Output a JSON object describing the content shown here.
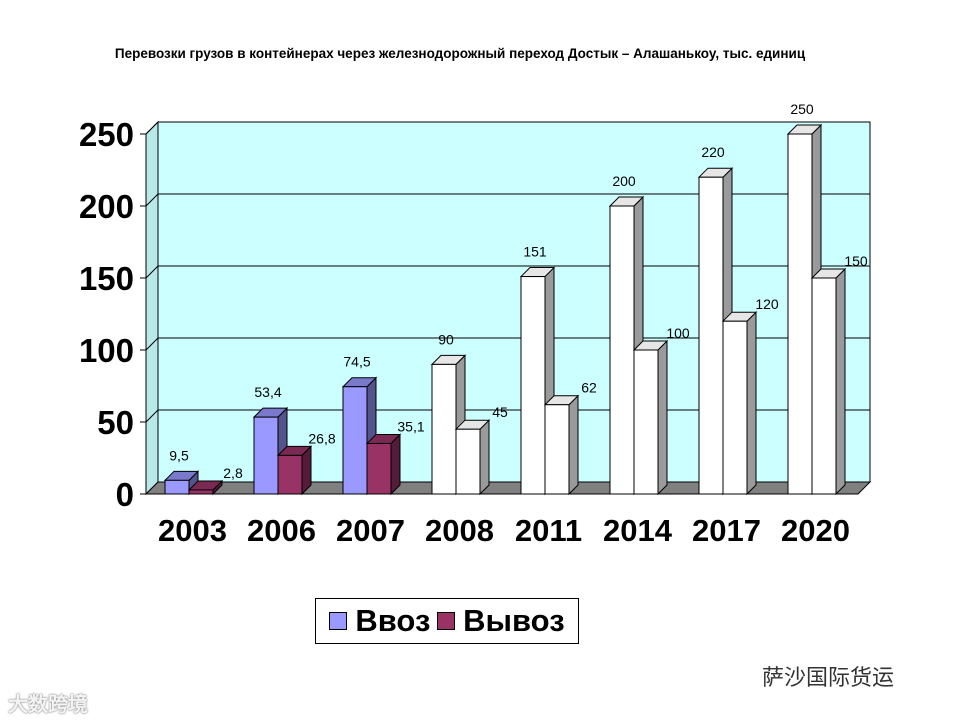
{
  "title": "Перевозки грузов в контейнерах через железнодорожный переход Достык – Алашанькоу, тыс. единиц",
  "colors": {
    "plot_bg": "#ccffff",
    "import": "#9999ff",
    "export": "#993366",
    "forecast": "#ffffff",
    "floor": "#808080"
  },
  "chart_data": {
    "type": "bar",
    "categories": [
      "2003",
      "2006",
      "2007",
      "2008",
      "2011",
      "2014",
      "2017",
      "2020"
    ],
    "series": [
      {
        "name": "Ввоз",
        "values": [
          9.5,
          53.4,
          74.5,
          90,
          151,
          200,
          220,
          250
        ],
        "labels": [
          "9,5",
          "53,4",
          "74,5",
          "90",
          "151",
          "200",
          "220",
          "250"
        ]
      },
      {
        "name": "Вывоз",
        "values": [
          2.8,
          26.8,
          35.1,
          45,
          62,
          100,
          120,
          150
        ],
        "labels": [
          "2,8",
          "26,8",
          "35,1",
          "45",
          "62",
          "100",
          "120",
          "150"
        ]
      }
    ],
    "forecast_from_index": 3,
    "yticks": [
      "0",
      "50",
      "100",
      "150",
      "200",
      "250"
    ],
    "ylim": [
      0,
      250
    ],
    "grid": true,
    "legend": "bottom-center"
  },
  "watermarks": {
    "left": "大数跨境",
    "right": "萨沙国际货运"
  }
}
